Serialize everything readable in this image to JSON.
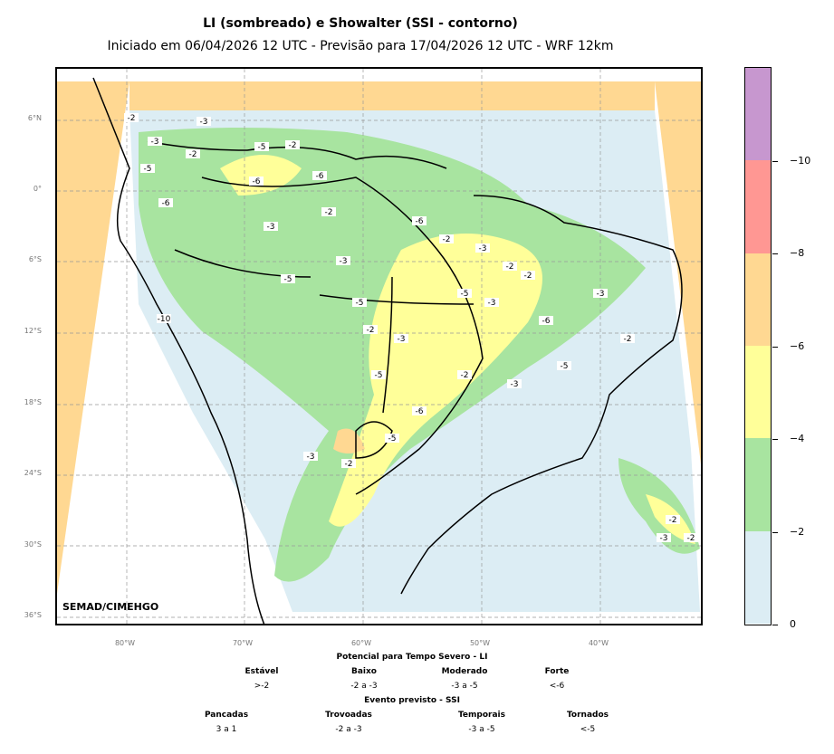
{
  "title": "LI (sombreado) e Showalter (SSI - contorno)",
  "subtitle": "Iniciado em 06/04/2026 12 UTC - Previsão para 17/04/2026 12 UTC - WRF 12km",
  "credit": "SEMAD/CIMEHGO",
  "lat_labels": [
    "6°N",
    "0°",
    "6°S",
    "12°S",
    "18°S",
    "24°S",
    "30°S",
    "36°S"
  ],
  "lon_labels": [
    "80°W",
    "70°W",
    "60°W",
    "50°W",
    "40°W"
  ],
  "colorbar": {
    "colors": [
      "#dcedf4",
      "#a8e4a0",
      "#ffff99",
      "#ffd892",
      "#ff9793",
      "#c797cf"
    ],
    "tick_labels": [
      "0",
      "−2",
      "−4",
      "−6",
      "−8",
      "−10"
    ]
  },
  "legend": {
    "li_title": "Potencial para Tempo Severo - LI",
    "li_categories": [
      {
        "name": "Estável",
        "range": ">-2"
      },
      {
        "name": "Baixo",
        "range": "-2 a -3"
      },
      {
        "name": "Moderado",
        "range": "-3 a -5"
      },
      {
        "name": "Forte",
        "range": "<-6"
      }
    ],
    "ssi_title": "Evento previsto - SSI",
    "ssi_categories": [
      {
        "name": "Pancadas",
        "range": "3 a 1"
      },
      {
        "name": "Trovoadas",
        "range": "-2 a -3"
      },
      {
        "name": "Temporais",
        "range": "-3 a -5"
      },
      {
        "name": "Tornados",
        "range": "<-5"
      }
    ]
  },
  "contour_labels": [
    "-2",
    "-3",
    "-5",
    "-6",
    "-10",
    "-2",
    "-3",
    "-5",
    "-6",
    "-2",
    "-3",
    "-5",
    "-6",
    "-2",
    "-3",
    "-5",
    "-2",
    "-3",
    "-5",
    "-6",
    "-2",
    "-3",
    "-2",
    "-5",
    "-3",
    "-2",
    "-6",
    "-3",
    "-2",
    "-5",
    "-3",
    "-2",
    "-6",
    "-5",
    "-2",
    "-3",
    "-2",
    "-3",
    "-2"
  ]
}
